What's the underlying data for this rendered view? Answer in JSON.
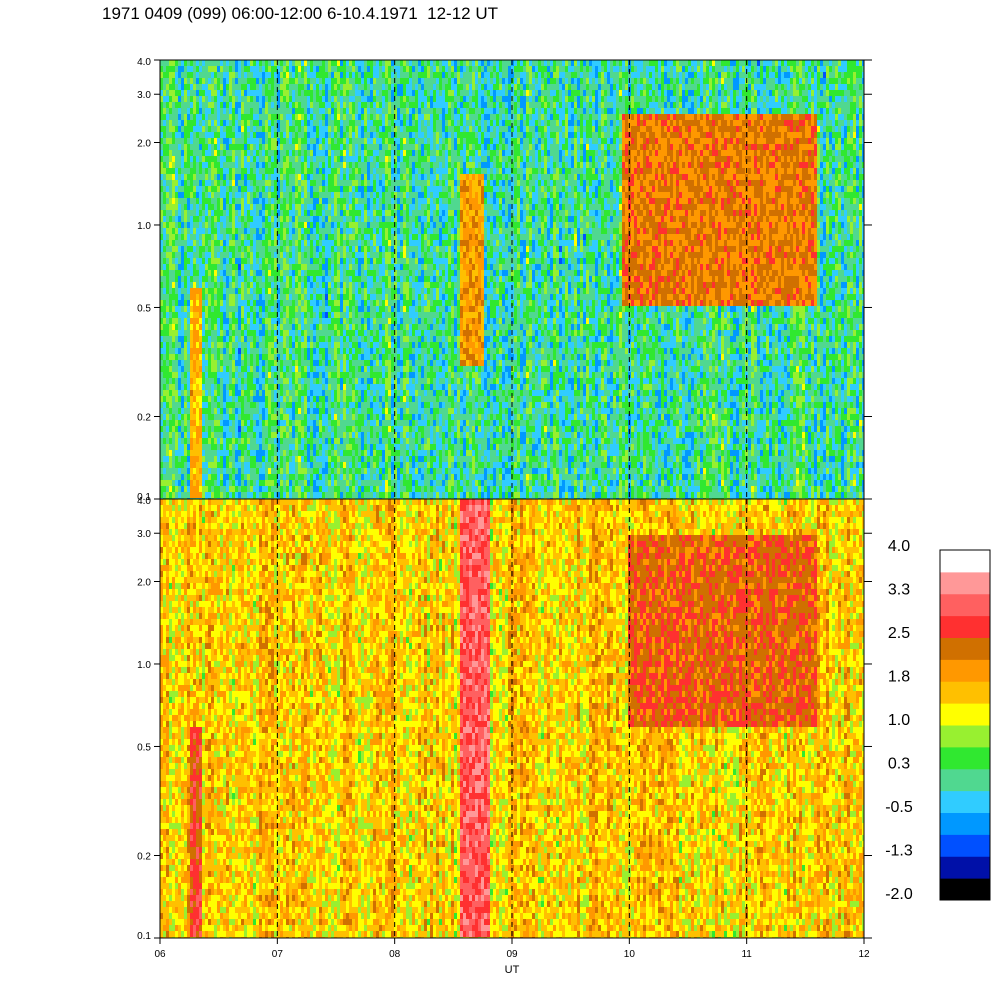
{
  "title": "1971 0409 (099) 06:00-12:00 6-10.4.1971  12-12 UT",
  "chart_data": {
    "type": "heatmap",
    "xlabel": "UT",
    "x_ticks": [
      "06",
      "07",
      "08",
      "09",
      "10",
      "11",
      "12"
    ],
    "xlim": [
      6,
      12
    ],
    "y_scale": "log",
    "ylim": [
      0.1,
      4.0
    ],
    "y_ticks": [
      {
        "value": 0.1,
        "label": "0.1"
      },
      {
        "value": 0.2,
        "label": "0.2"
      },
      {
        "value": 0.5,
        "label": "0.5"
      },
      {
        "value": 1.0,
        "label": "1.0"
      },
      {
        "value": 2.0,
        "label": "2.0"
      },
      {
        "value": 3.0,
        "label": "3.0"
      },
      {
        "value": 4.0,
        "label": "4.0"
      }
    ],
    "vertical_dashed_lines_at": [
      7,
      8,
      9,
      10,
      11
    ],
    "panels": [
      {
        "name": "upper",
        "background_level": 0.1,
        "features": [
          {
            "x_start": 6.25,
            "x_end": 6.35,
            "y_min": 0.1,
            "y_max": 0.6,
            "level": 1.7
          },
          {
            "x_start": 8.55,
            "x_end": 8.75,
            "y_min": 0.3,
            "y_max": 1.5,
            "level": 1.9
          },
          {
            "x_start": 9.95,
            "x_end": 11.6,
            "y_min": 0.5,
            "y_max": 2.5,
            "level": 2.2
          }
        ]
      },
      {
        "name": "lower",
        "background_level": 1.5,
        "features": [
          {
            "x_start": 6.25,
            "x_end": 6.35,
            "y_min": 0.1,
            "y_max": 0.6,
            "level": 2.6
          },
          {
            "x_start": 8.55,
            "x_end": 8.8,
            "y_min": 0.1,
            "y_max": 4.0,
            "level": 3.0
          },
          {
            "x_start": 10.0,
            "x_end": 11.6,
            "y_min": 0.6,
            "y_max": 3.0,
            "level": 2.4
          }
        ]
      }
    ],
    "colorbar": {
      "labels": [
        "4.0",
        "3.3",
        "2.5",
        "1.8",
        "1.0",
        "0.3",
        "-0.5",
        "-1.3",
        "-2.0"
      ],
      "min": -2.0,
      "max": 4.0,
      "colors": [
        "#000000",
        "#0010a8",
        "#0050ff",
        "#0098ff",
        "#30ccff",
        "#50d890",
        "#30e830",
        "#98f030",
        "#ffff00",
        "#ffc000",
        "#ff9800",
        "#d07000",
        "#ff3030",
        "#ff6060",
        "#ff9898",
        "#ffffff"
      ]
    }
  }
}
